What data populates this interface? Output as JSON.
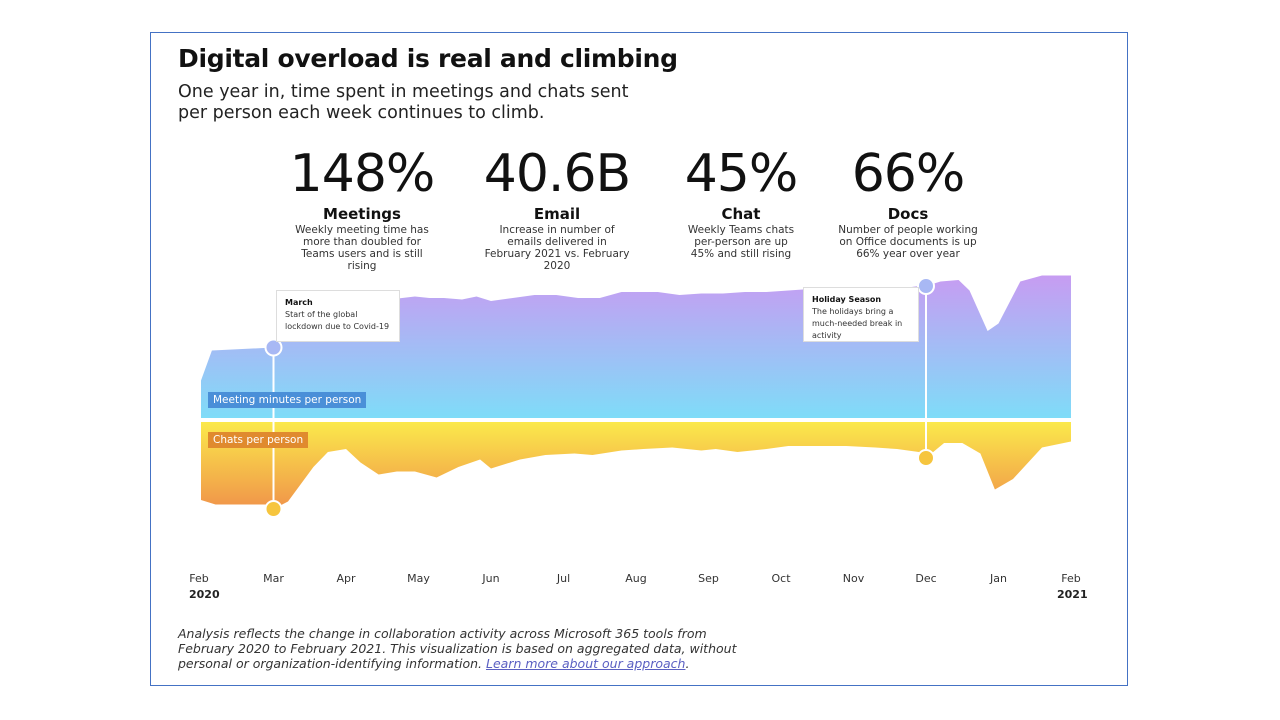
{
  "header": {
    "title": "Digital overload is real and climbing",
    "subtitle": "One year in, time spent in meetings and chats sent per person each week continues to climb."
  },
  "stats": [
    {
      "value": "148%",
      "label": "Meetings",
      "desc": "Weekly meeting time has more than doubled for Teams users and is still rising"
    },
    {
      "value": "40.6B",
      "label": "Email",
      "desc": "Increase in number of emails delivered in February 2021 vs. February 2020"
    },
    {
      "value": "45%",
      "label": "Chat",
      "desc": "Weekly Teams chats per-person are up 45% and still rising"
    },
    {
      "value": "66%",
      "label": "Docs",
      "desc": "Number of people working on Office documents is up 66% year over year"
    }
  ],
  "annotations": [
    {
      "title": "March",
      "text": "Start of the global lockdown due to Covid-19",
      "month_index": 1
    },
    {
      "title": "Holiday Season",
      "text": "The holidays bring a much-needed break in activity",
      "month_index": 10
    }
  ],
  "footer": {
    "text": "Analysis reflects the change in collaboration activity across Microsoft 365 tools from February 2020 to February 2021. This visualization is based on aggregated data, without personal or organization-identifying information. ",
    "link": "Learn more about our approach",
    "end": "."
  },
  "colors": {
    "meeting_top": "#c79cf2",
    "meeting_bottom": "#7fdcf8",
    "chat_top": "#fbe94b",
    "chat_bottom": "#f0944a",
    "meeting_label_bg": "#4a8fd8",
    "chat_label_bg": "#e08a2e",
    "frame": "#4472c4"
  },
  "chart_data": {
    "type": "area",
    "title": "Digital overload is real and climbing",
    "x_unit": "month (0 = Feb 2020, 12 = Feb 2021)",
    "categories": [
      "Feb",
      "Mar",
      "Apr",
      "May",
      "Jun",
      "Jul",
      "Aug",
      "Sep",
      "Oct",
      "Nov",
      "Dec",
      "Jan",
      "Feb"
    ],
    "year_labels": {
      "start": "2020",
      "end": "2021"
    },
    "ylim": [
      0,
      100
    ],
    "y_unit": "relative index",
    "series": [
      {
        "name": "Meeting minutes per person",
        "direction": "up",
        "x": [
          0,
          0.15,
          1,
          1.5,
          1.65,
          1.85,
          2.0,
          2.15,
          2.35,
          2.6,
          2.95,
          3.15,
          3.35,
          3.6,
          3.8,
          4.0,
          4.3,
          4.6,
          4.9,
          5.2,
          5.5,
          5.8,
          6.0,
          6.3,
          6.6,
          6.9,
          7.2,
          7.5,
          7.8,
          8.1,
          8.4,
          8.7,
          9.0,
          9.3,
          9.6,
          9.9,
          10.0,
          10.2,
          10.45,
          10.6,
          10.85,
          11.0,
          11.3,
          11.6,
          12.0
        ],
        "values": [
          25,
          45,
          47,
          79,
          73,
          78,
          80,
          82,
          75,
          79,
          81,
          80,
          80,
          79,
          81,
          78,
          80,
          82,
          82,
          80,
          80,
          84,
          84,
          84,
          82,
          83,
          83,
          84,
          84,
          85,
          86,
          86,
          87,
          86,
          86,
          88,
          88,
          91,
          92,
          85,
          58,
          63,
          91,
          95,
          95
        ]
      },
      {
        "name": "Chats per person",
        "direction": "down",
        "x": [
          0,
          0.2,
          0.5,
          0.9,
          1.0,
          1.2,
          1.55,
          1.75,
          2.0,
          2.2,
          2.45,
          2.7,
          2.95,
          3.25,
          3.55,
          3.85,
          4.0,
          4.4,
          4.75,
          5.15,
          5.4,
          5.8,
          6.1,
          6.5,
          6.9,
          7.1,
          7.4,
          7.8,
          8.1,
          8.5,
          8.9,
          9.3,
          9.6,
          9.9,
          10.0,
          10.25,
          10.5,
          10.75,
          10.95,
          11.2,
          11.6,
          12.0
        ],
        "values": [
          52,
          55,
          55,
          55,
          58,
          53,
          30,
          20,
          18,
          27,
          35,
          33,
          33,
          37,
          30,
          25,
          31,
          25,
          22,
          21,
          22,
          19,
          18,
          17,
          19,
          18,
          20,
          18,
          16,
          16,
          16,
          17,
          18,
          20,
          24,
          14,
          14,
          21,
          45,
          38,
          17,
          13
        ]
      }
    ]
  }
}
